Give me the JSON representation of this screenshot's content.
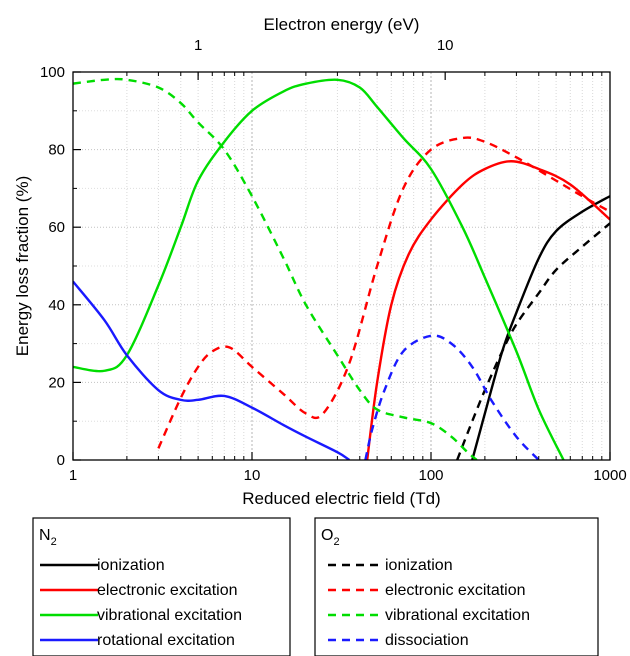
{
  "chart_data": {
    "type": "line",
    "xlabel": "Reduced electric field (Td)",
    "x2label": "Electron energy (eV)",
    "ylabel": "Energy loss fraction (%)",
    "xscale": "log",
    "xlim": [
      1,
      1000
    ],
    "ylim": [
      0,
      100
    ],
    "grid": true,
    "x_ticks": [
      {
        "value": 1,
        "label": "1"
      },
      {
        "value": 10,
        "label": "10"
      },
      {
        "value": 100,
        "label": "100"
      },
      {
        "value": 1000,
        "label": "1000"
      }
    ],
    "y_ticks": [
      {
        "value": 0,
        "label": "0"
      },
      {
        "value": 20,
        "label": "20"
      },
      {
        "value": 40,
        "label": "40"
      },
      {
        "value": 60,
        "label": "60"
      },
      {
        "value": 80,
        "label": "80"
      },
      {
        "value": 100,
        "label": "100"
      }
    ],
    "top_ticks": [
      {
        "label": "1",
        "at_reduced_field_td": 5.0
      },
      {
        "label": "10",
        "at_reduced_field_td": 120
      }
    ],
    "legends": [
      {
        "group": "N2",
        "title_base": "N",
        "title_sub": "2",
        "placement": "below-left",
        "entries": [
          {
            "series": 0,
            "label": "ionization"
          },
          {
            "series": 1,
            "label": "electronic excitation"
          },
          {
            "series": 2,
            "label": "vibrational excitation"
          },
          {
            "series": 3,
            "label": "rotational excitation"
          }
        ]
      },
      {
        "group": "O2",
        "title_base": "O",
        "title_sub": "2",
        "placement": "below-right",
        "entries": [
          {
            "series": 4,
            "label": "ionization"
          },
          {
            "series": 5,
            "label": "electronic excitation"
          },
          {
            "series": 6,
            "label": "vibrational excitation"
          },
          {
            "series": 7,
            "label": "dissociation"
          }
        ]
      }
    ],
    "series": [
      {
        "name": "ionization",
        "group": "N2",
        "color": "#000000",
        "dash": "solid",
        "points": [
          [
            170,
            0
          ],
          [
            200,
            12
          ],
          [
            250,
            28
          ],
          [
            300,
            38
          ],
          [
            400,
            52
          ],
          [
            500,
            59
          ],
          [
            700,
            64
          ],
          [
            1000,
            68
          ]
        ]
      },
      {
        "name": "electronic excitation",
        "group": "N2",
        "color": "#ff0000",
        "dash": "solid",
        "points": [
          [
            44,
            0
          ],
          [
            50,
            20
          ],
          [
            60,
            40
          ],
          [
            75,
            53
          ],
          [
            100,
            62
          ],
          [
            150,
            71
          ],
          [
            200,
            75
          ],
          [
            280,
            77
          ],
          [
            400,
            75
          ],
          [
            600,
            71
          ],
          [
            1000,
            62
          ]
        ]
      },
      {
        "name": "vibrational excitation",
        "group": "N2",
        "color": "#00dd00",
        "dash": "solid",
        "points": [
          [
            1,
            24
          ],
          [
            1.5,
            23
          ],
          [
            2,
            27
          ],
          [
            3,
            45
          ],
          [
            4,
            60
          ],
          [
            5,
            72
          ],
          [
            7,
            82
          ],
          [
            10,
            90
          ],
          [
            15,
            95
          ],
          [
            20,
            97
          ],
          [
            30,
            98
          ],
          [
            40,
            96
          ],
          [
            50,
            91
          ],
          [
            70,
            83
          ],
          [
            100,
            75
          ],
          [
            150,
            60
          ],
          [
            200,
            47
          ],
          [
            300,
            28
          ],
          [
            400,
            13
          ],
          [
            550,
            0
          ]
        ]
      },
      {
        "name": "rotational excitation",
        "group": "N2",
        "color": "#1a1aff",
        "dash": "solid",
        "points": [
          [
            1,
            46
          ],
          [
            1.5,
            36
          ],
          [
            2,
            27
          ],
          [
            3,
            18
          ],
          [
            4,
            15.5
          ],
          [
            5,
            15.5
          ],
          [
            7,
            16.5
          ],
          [
            10,
            13.5
          ],
          [
            15,
            9
          ],
          [
            20,
            6
          ],
          [
            30,
            2
          ],
          [
            35,
            0
          ]
        ]
      },
      {
        "name": "ionization",
        "group": "O2",
        "color": "#000000",
        "dash": "dashed",
        "points": [
          [
            140,
            0
          ],
          [
            170,
            10
          ],
          [
            200,
            18
          ],
          [
            250,
            28
          ],
          [
            300,
            35
          ],
          [
            400,
            43
          ],
          [
            500,
            49
          ],
          [
            700,
            55
          ],
          [
            1000,
            61
          ]
        ]
      },
      {
        "name": "electronic excitation",
        "group": "O2",
        "color": "#ff0000",
        "dash": "dashed",
        "points": [
          [
            3,
            3
          ],
          [
            4,
            16
          ],
          [
            5,
            24
          ],
          [
            6,
            28
          ],
          [
            7.5,
            29
          ],
          [
            10,
            24
          ],
          [
            15,
            17
          ],
          [
            20,
            12
          ],
          [
            25,
            12
          ],
          [
            35,
            25
          ],
          [
            50,
            50
          ],
          [
            70,
            70
          ],
          [
            100,
            80
          ],
          [
            150,
            83
          ],
          [
            200,
            82
          ],
          [
            300,
            78
          ],
          [
            500,
            72
          ],
          [
            700,
            68
          ],
          [
            1000,
            64
          ]
        ]
      },
      {
        "name": "vibrational excitation",
        "group": "O2",
        "color": "#00dd00",
        "dash": "dashed",
        "points": [
          [
            1,
            97
          ],
          [
            1.5,
            98
          ],
          [
            2,
            98
          ],
          [
            3,
            96
          ],
          [
            4,
            92
          ],
          [
            5,
            87
          ],
          [
            7,
            80
          ],
          [
            10,
            68
          ],
          [
            15,
            52
          ],
          [
            20,
            40
          ],
          [
            30,
            27
          ],
          [
            40,
            18
          ],
          [
            50,
            13
          ],
          [
            70,
            11
          ],
          [
            100,
            9.5
          ],
          [
            130,
            6
          ],
          [
            160,
            2
          ],
          [
            180,
            0
          ]
        ]
      },
      {
        "name": "dissociation",
        "group": "O2",
        "color": "#1a1aff",
        "dash": "dashed",
        "points": [
          [
            43,
            0
          ],
          [
            47,
            8
          ],
          [
            55,
            18
          ],
          [
            70,
            28
          ],
          [
            100,
            32
          ],
          [
            130,
            30
          ],
          [
            170,
            24
          ],
          [
            220,
            15
          ],
          [
            300,
            6
          ],
          [
            400,
            0
          ]
        ]
      }
    ]
  }
}
